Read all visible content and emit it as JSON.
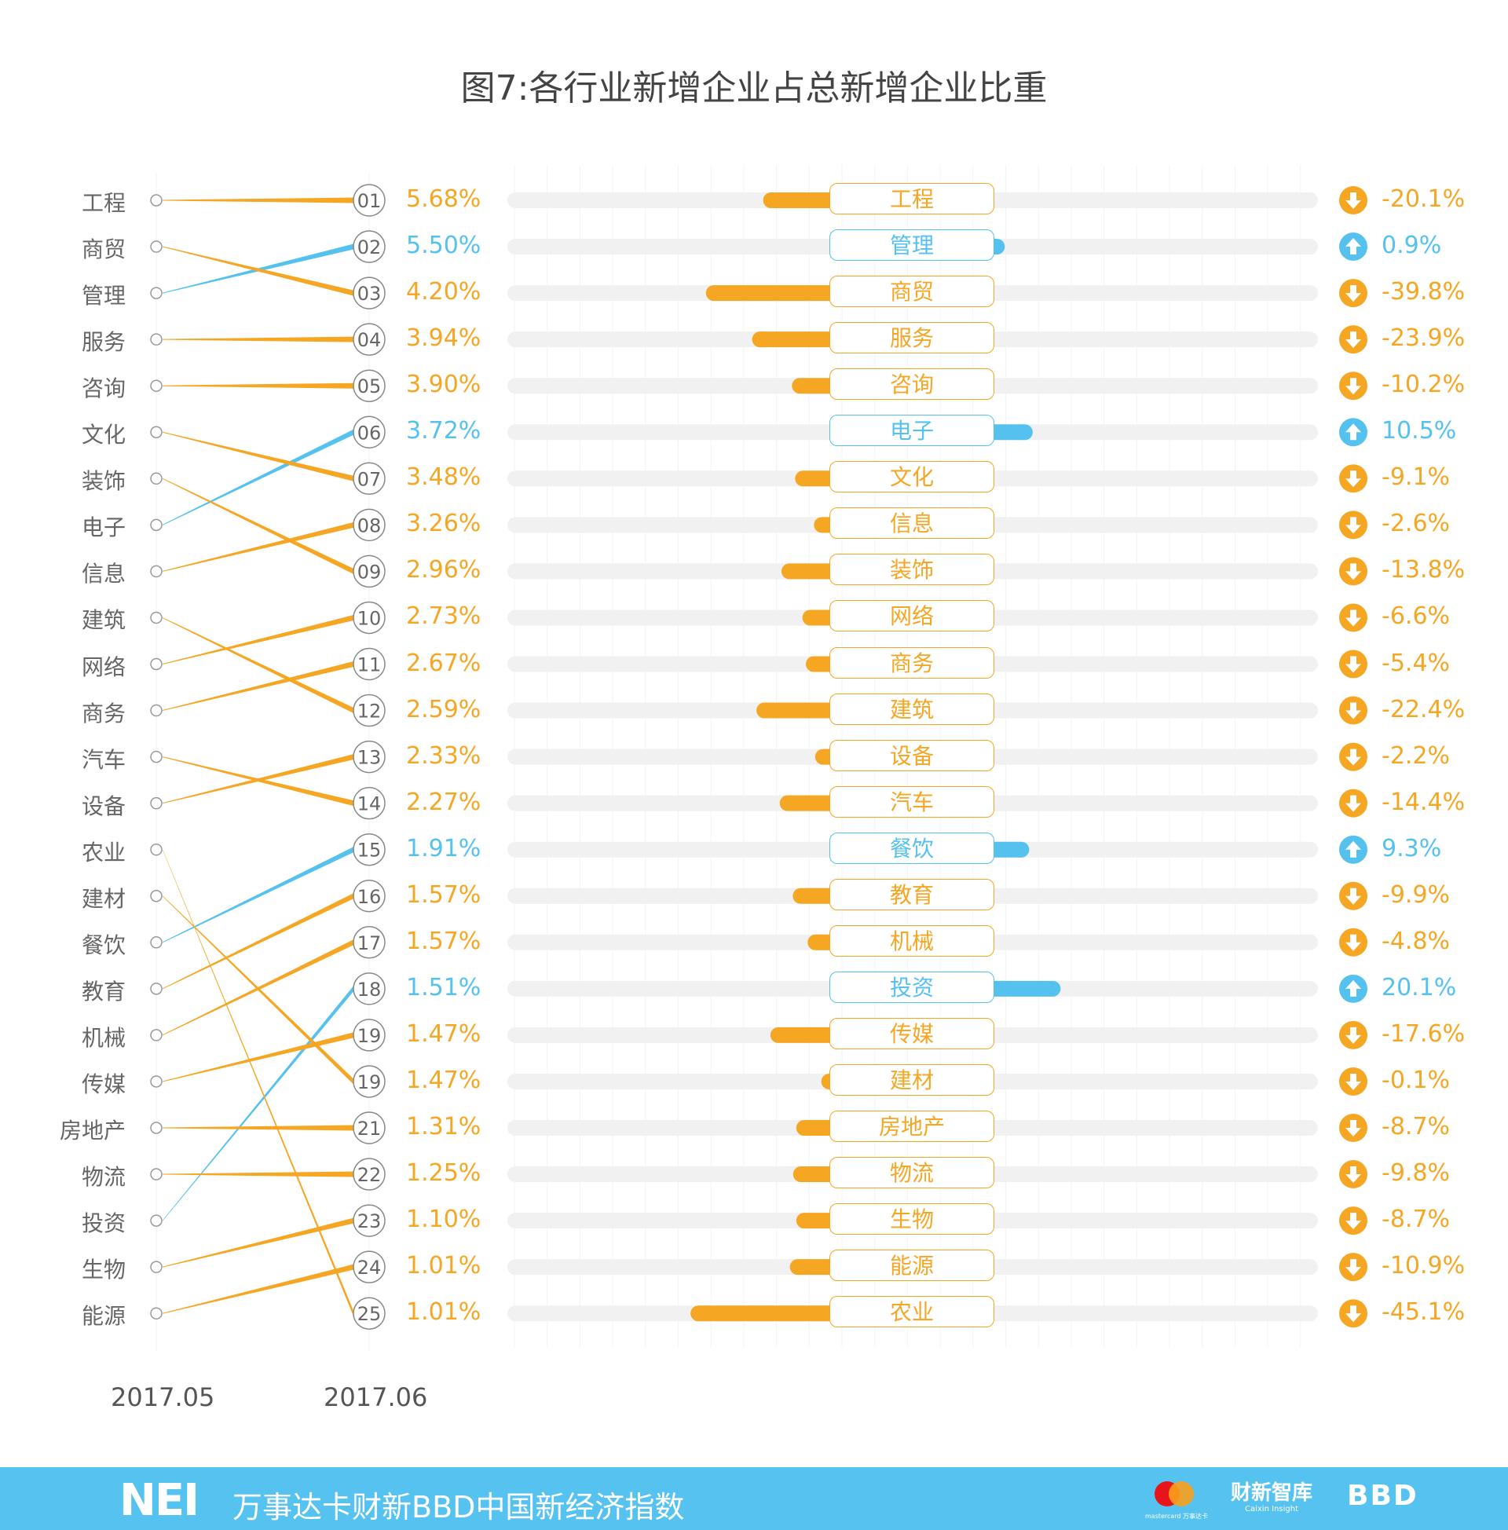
{
  "title": "图7:各行业新增企业占总新增企业比重",
  "chart_data": {
    "type": "slope+bar",
    "title": "图7:各行业新增企业占总新增企业比重",
    "x_labels": [
      "2017.05",
      "2017.06"
    ],
    "left_order": [
      "工程",
      "商贸",
      "管理",
      "服务",
      "咨询",
      "文化",
      "装饰",
      "电子",
      "信息",
      "建筑",
      "网络",
      "商务",
      "汽车",
      "设备",
      "农业",
      "建材",
      "餐饮",
      "教育",
      "机械",
      "传媒",
      "房地产",
      "物流",
      "投资",
      "生物",
      "能源"
    ],
    "rows": [
      {
        "rank": "01",
        "name": "工程",
        "share": "5.68%",
        "change": -20.1,
        "change_label": "-20.1%"
      },
      {
        "rank": "02",
        "name": "管理",
        "share": "5.50%",
        "change": 0.9,
        "change_label": "0.9%"
      },
      {
        "rank": "03",
        "name": "商贸",
        "share": "4.20%",
        "change": -39.8,
        "change_label": "-39.8%"
      },
      {
        "rank": "04",
        "name": "服务",
        "share": "3.94%",
        "change": -23.9,
        "change_label": "-23.9%"
      },
      {
        "rank": "05",
        "name": "咨询",
        "share": "3.90%",
        "change": -10.2,
        "change_label": "-10.2%"
      },
      {
        "rank": "06",
        "name": "电子",
        "share": "3.72%",
        "change": 10.5,
        "change_label": "10.5%"
      },
      {
        "rank": "07",
        "name": "文化",
        "share": "3.48%",
        "change": -9.1,
        "change_label": "-9.1%"
      },
      {
        "rank": "08",
        "name": "信息",
        "share": "3.26%",
        "change": -2.6,
        "change_label": "-2.6%"
      },
      {
        "rank": "09",
        "name": "装饰",
        "share": "2.96%",
        "change": -13.8,
        "change_label": "-13.8%"
      },
      {
        "rank": "10",
        "name": "网络",
        "share": "2.73%",
        "change": -6.6,
        "change_label": "-6.6%"
      },
      {
        "rank": "11",
        "name": "商务",
        "share": "2.67%",
        "change": -5.4,
        "change_label": "-5.4%"
      },
      {
        "rank": "12",
        "name": "建筑",
        "share": "2.59%",
        "change": -22.4,
        "change_label": "-22.4%"
      },
      {
        "rank": "13",
        "name": "设备",
        "share": "2.33%",
        "change": -2.2,
        "change_label": "-2.2%"
      },
      {
        "rank": "14",
        "name": "汽车",
        "share": "2.27%",
        "change": -14.4,
        "change_label": "-14.4%"
      },
      {
        "rank": "15",
        "name": "餐饮",
        "share": "1.91%",
        "change": 9.3,
        "change_label": "9.3%"
      },
      {
        "rank": "16",
        "name": "教育",
        "share": "1.57%",
        "change": -9.9,
        "change_label": "-9.9%"
      },
      {
        "rank": "17",
        "name": "机械",
        "share": "1.57%",
        "change": -4.8,
        "change_label": "-4.8%"
      },
      {
        "rank": "18",
        "name": "投资",
        "share": "1.51%",
        "change": 20.1,
        "change_label": "20.1%"
      },
      {
        "rank": "19",
        "name": "传媒",
        "share": "1.47%",
        "change": -17.6,
        "change_label": "-17.6%"
      },
      {
        "rank": "19",
        "name": "建材",
        "share": "1.47%",
        "change": -0.1,
        "change_label": "-0.1%"
      },
      {
        "rank": "21",
        "name": "房地产",
        "share": "1.31%",
        "change": -8.7,
        "change_label": "-8.7%"
      },
      {
        "rank": "22",
        "name": "物流",
        "share": "1.25%",
        "change": -9.8,
        "change_label": "-9.8%"
      },
      {
        "rank": "23",
        "name": "生物",
        "share": "1.10%",
        "change": -8.7,
        "change_label": "-8.7%"
      },
      {
        "rank": "24",
        "name": "能源",
        "share": "1.01%",
        "change": -10.9,
        "change_label": "-10.9%"
      },
      {
        "rank": "25",
        "name": "农业",
        "share": "1.01%",
        "change": -45.1,
        "change_label": "-45.1%"
      }
    ],
    "colors": {
      "decrease": "#f5a623",
      "increase": "#55c1ef",
      "track": "#f1f1f1"
    }
  },
  "footer": {
    "logo": "NEI",
    "text": "万事达卡财新BBD中国新经济指数",
    "partner_logos": [
      "mastercard 万事达卡",
      "财新智库 Caixin Insight",
      "BBD"
    ]
  }
}
